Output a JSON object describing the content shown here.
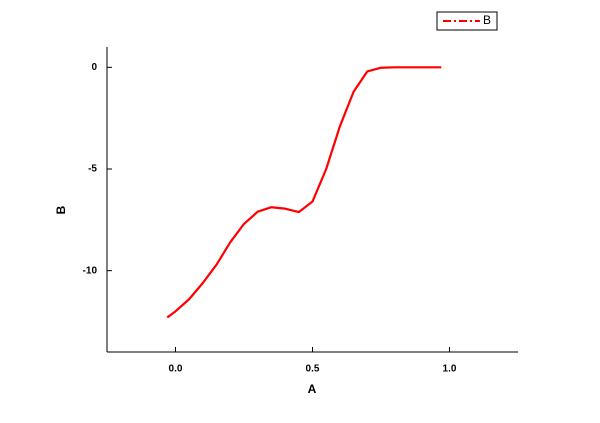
{
  "chart_data": {
    "type": "line",
    "x_label": "A",
    "y_label": "B",
    "x": [
      -0.03,
      0.0,
      0.05,
      0.1,
      0.15,
      0.2,
      0.25,
      0.3,
      0.35,
      0.4,
      0.45,
      0.5,
      0.55,
      0.6,
      0.65,
      0.7,
      0.75,
      0.8,
      0.85,
      0.9,
      0.97
    ],
    "series": [
      {
        "name": "B",
        "color": "#ff0000",
        "values": [
          -12.3,
          -12.0,
          -11.4,
          -10.6,
          -9.7,
          -8.6,
          -7.7,
          -7.1,
          -6.88,
          -6.95,
          -7.12,
          -6.6,
          -5.0,
          -2.9,
          -1.2,
          -0.2,
          -0.02,
          0,
          0,
          0,
          0
        ]
      }
    ],
    "xlim": [
      -0.25,
      1.25
    ],
    "ylim": [
      -14,
      1
    ],
    "xticks": [
      {
        "value": 0,
        "label": "0.0"
      },
      0.5,
      {
        "value": 1,
        "label": "1.0"
      }
    ],
    "yticks": [
      -10,
      -5,
      0
    ],
    "legend": "top-right"
  }
}
